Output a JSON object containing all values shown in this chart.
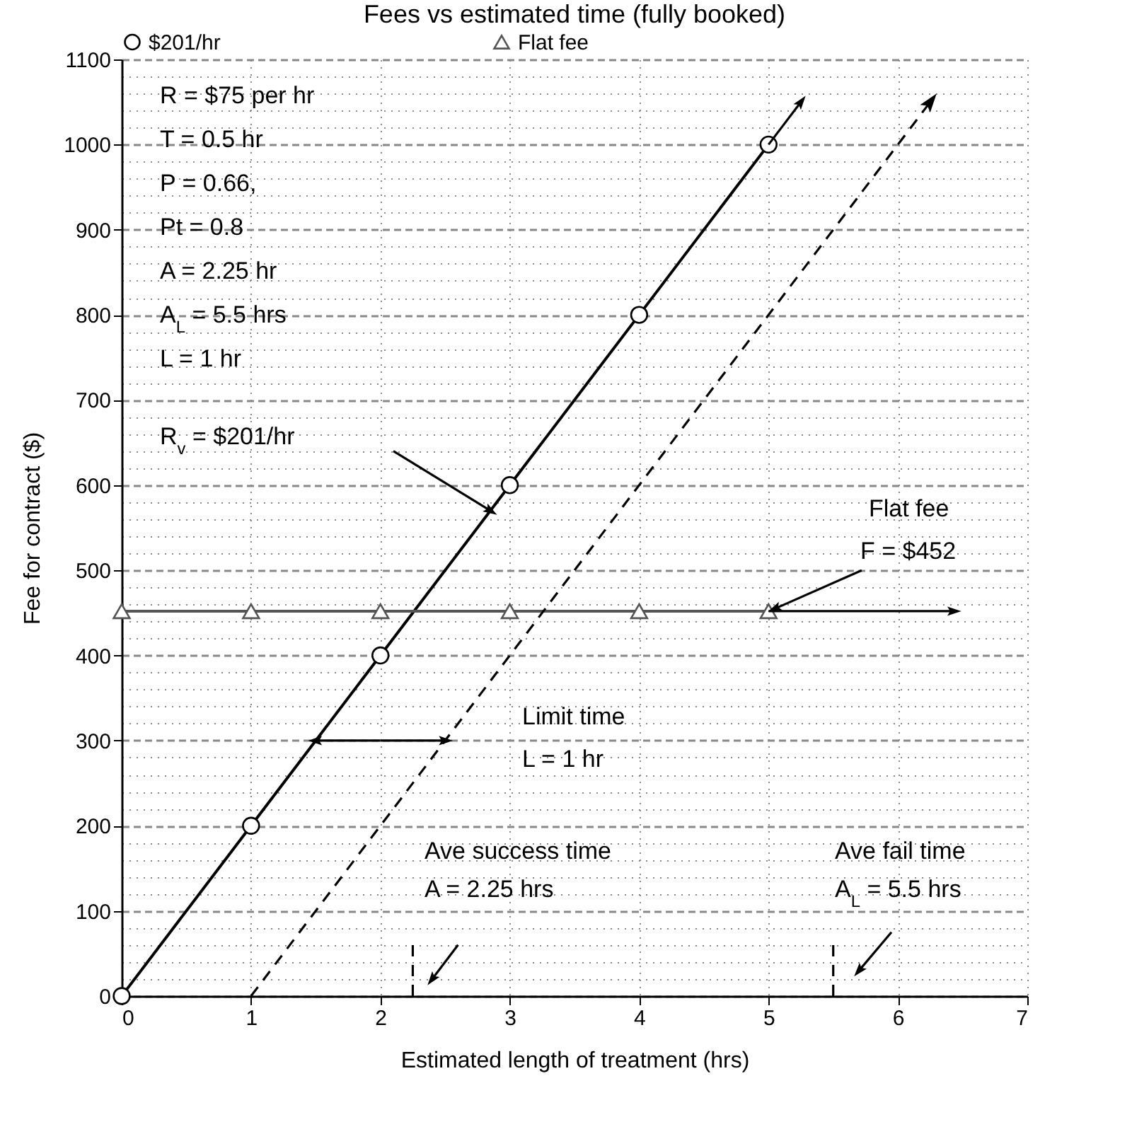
{
  "chart_data": {
    "type": "line",
    "title": "Fees vs estimated time (fully booked)",
    "xlabel": "Estimated length of treatment (hrs)",
    "ylabel": "Fee for contract ($)",
    "xlim": [
      0,
      7
    ],
    "xticks": [
      0,
      1,
      2,
      3,
      4,
      5,
      6,
      7
    ],
    "ylim": [
      0,
      1100
    ],
    "yticks": [
      0,
      {
        "value": 20,
        "label": null
      },
      {
        "value": 40,
        "label": null
      },
      {
        "value": 60,
        "label": null
      },
      {
        "value": 80,
        "label": null
      },
      100,
      {
        "value": 120,
        "label": null
      },
      {
        "value": 140,
        "label": null
      },
      {
        "value": 160,
        "label": null
      },
      {
        "value": 180,
        "label": null
      },
      200,
      {
        "value": 220,
        "label": null
      },
      {
        "value": 240,
        "label": null
      },
      {
        "value": 260,
        "label": null
      },
      {
        "value": 280,
        "label": null
      },
      300,
      {
        "value": 320,
        "label": null
      },
      {
        "value": 340,
        "label": null
      },
      {
        "value": 360,
        "label": null
      },
      {
        "value": 380,
        "label": null
      },
      400,
      {
        "value": 420,
        "label": null
      },
      {
        "value": 440,
        "label": null
      },
      {
        "value": 460,
        "label": null
      },
      {
        "value": 480,
        "label": null
      },
      500,
      {
        "value": 520,
        "label": null
      },
      {
        "value": 540,
        "label": null
      },
      {
        "value": 560,
        "label": null
      },
      {
        "value": 580,
        "label": null
      },
      600,
      {
        "value": 620,
        "label": null
      },
      {
        "value": 640,
        "label": null
      },
      {
        "value": 660,
        "label": null
      },
      {
        "value": 680,
        "label": null
      },
      700,
      {
        "value": 720,
        "label": null
      },
      {
        "value": 740,
        "label": null
      },
      {
        "value": 760,
        "label": null
      },
      {
        "value": 780,
        "label": null
      },
      800,
      {
        "value": 820,
        "label": null
      },
      {
        "value": 840,
        "label": null
      },
      {
        "value": 860,
        "label": null
      },
      {
        "value": 880,
        "label": null
      },
      900,
      {
        "value": 920,
        "label": null
      },
      {
        "value": 940,
        "label": null
      },
      {
        "value": 960,
        "label": null
      },
      {
        "value": 980,
        "label": null
      },
      1000,
      {
        "value": 1020,
        "label": null
      },
      {
        "value": 1040,
        "label": null
      },
      {
        "value": 1060,
        "label": null
      },
      {
        "value": 1080,
        "label": null
      },
      1100
    ],
    "grid": true,
    "legend": "top",
    "series": [
      {
        "name": "$201/hr",
        "color": "#000000",
        "marker": "circle",
        "line_style": "solid",
        "x": [
          0,
          1,
          2,
          3,
          4,
          5
        ],
        "values": [
          0,
          200,
          400,
          600,
          800,
          1000
        ]
      },
      {
        "name": "Flat fee",
        "color": "#555555",
        "marker": "triangle",
        "line_style": "solid",
        "x": [
          0,
          1,
          2,
          3,
          4,
          5
        ],
        "values": [
          452,
          452,
          452,
          452,
          452,
          452
        ]
      },
      {
        "color": "#000000",
        "line_style": "dashed",
        "x": [
          1,
          6.25
        ],
        "values": [
          0,
          1050
        ]
      },
      {
        "color": "#000000",
        "line_style": "solid",
        "x": [
          5,
          5.25
        ],
        "values": [
          1000,
          1050
        ]
      },
      {
        "color": "#000000",
        "line_style": "solid",
        "x": [
          5,
          6.43
        ],
        "values": [
          452,
          452
        ]
      },
      {
        "color": "#000000",
        "line_style": "solid",
        "x": [
          2,
          1.5
        ],
        "values": [
          300,
          300
        ]
      },
      {
        "color": "#000000",
        "line_style": "solid",
        "x": [
          2,
          2.5
        ],
        "values": [
          300,
          300
        ]
      },
      {
        "color": "#000000",
        "line_style": "solid",
        "x": [
          2.1,
          2.85
        ],
        "values": [
          640,
          570
        ]
      },
      {
        "color": "#000000",
        "line_style": "solid",
        "x": [
          5.72,
          5.05
        ],
        "values": [
          500,
          455
        ]
      },
      {
        "color": "#000000",
        "line_style": "solid",
        "x": [
          2.6,
          2.4
        ],
        "values": [
          60,
          20
        ]
      },
      {
        "color": "#000000",
        "line_style": "solid",
        "x": [
          5.95,
          5.7
        ],
        "values": [
          75,
          30
        ]
      },
      {
        "color": "#000000",
        "line_style": "dashed",
        "marker": "none",
        "x": [
          2.25,
          2.25
        ],
        "values": [
          0,
          60
        ]
      },
      {
        "color": "#000000",
        "line_style": "dashed",
        "marker": "none",
        "x": [
          5.5,
          5.5
        ],
        "values": [
          0,
          60
        ]
      }
    ],
    "annotations": [
      "R = $75 per hr",
      "T = 0.5 hr",
      "P = 0.66,",
      "Pt = 0.8",
      "A = 2.25 hr",
      "A$_{L}$ = 5.5 hrs",
      "L = 1 hr",
      "R$_{v}$ = $201/hr",
      "Flat fee",
      "F = $452",
      "Limit time",
      "L = 1 hr",
      "Ave success time",
      "A = 2.25 hrs",
      "Ave fail time",
      "A$_{L}$ = 5.5 hrs"
    ]
  }
}
